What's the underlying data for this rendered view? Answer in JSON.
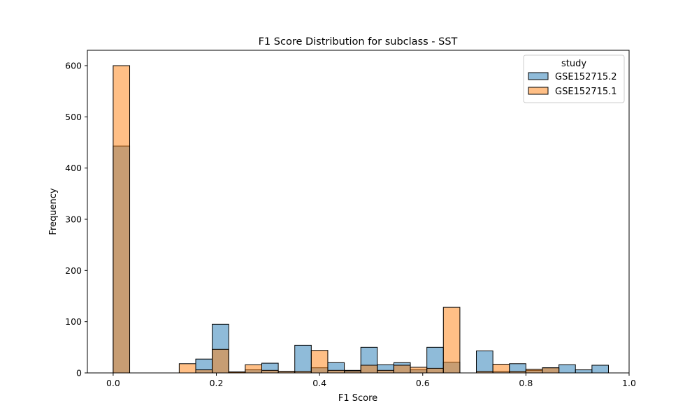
{
  "chart_data": {
    "type": "histogram",
    "title": "F1 Score Distribution for subclass - SST",
    "xlabel": "F1 Score",
    "ylabel": "Frequency",
    "xlim": [
      -0.05,
      1.0
    ],
    "ylim": [
      0,
      630
    ],
    "xticks": [
      0.0,
      0.2,
      0.4,
      0.6,
      0.8,
      1.0
    ],
    "xtick_labels": [
      "0.0",
      "0.2",
      "0.4",
      "0.6",
      "0.8",
      "1.0"
    ],
    "yticks": [
      0,
      100,
      200,
      300,
      400,
      500,
      600
    ],
    "ytick_labels": [
      "0",
      "100",
      "200",
      "300",
      "400",
      "500",
      "600"
    ],
    "bin_edges": [
      0.0,
      0.032,
      0.064,
      0.096,
      0.128,
      0.16,
      0.192,
      0.224,
      0.256,
      0.288,
      0.32,
      0.352,
      0.384,
      0.416,
      0.448,
      0.48,
      0.512,
      0.544,
      0.576,
      0.608,
      0.64,
      0.672,
      0.704,
      0.736,
      0.768,
      0.8,
      0.832,
      0.864,
      0.896,
      0.928,
      0.96
    ],
    "legend": {
      "title": "study",
      "placement": "upper right"
    },
    "series": [
      {
        "name": "GSE152715.2",
        "color": "#1f77b4",
        "values": [
          443,
          0,
          0,
          0,
          0,
          27,
          95,
          1,
          6,
          19,
          3,
          54,
          10,
          20,
          5,
          50,
          16,
          20,
          6,
          50,
          21,
          0,
          43,
          3,
          18,
          5,
          10,
          16,
          6,
          15
        ]
      },
      {
        "name": "GSE152715.1",
        "color": "#ff7f0e",
        "values": [
          600,
          0,
          0,
          0,
          18,
          6,
          46,
          2,
          16,
          5,
          3,
          3,
          44,
          5,
          4,
          15,
          5,
          15,
          11,
          9,
          128,
          0,
          3,
          17,
          3,
          7,
          10,
          0,
          0,
          0
        ]
      }
    ]
  }
}
